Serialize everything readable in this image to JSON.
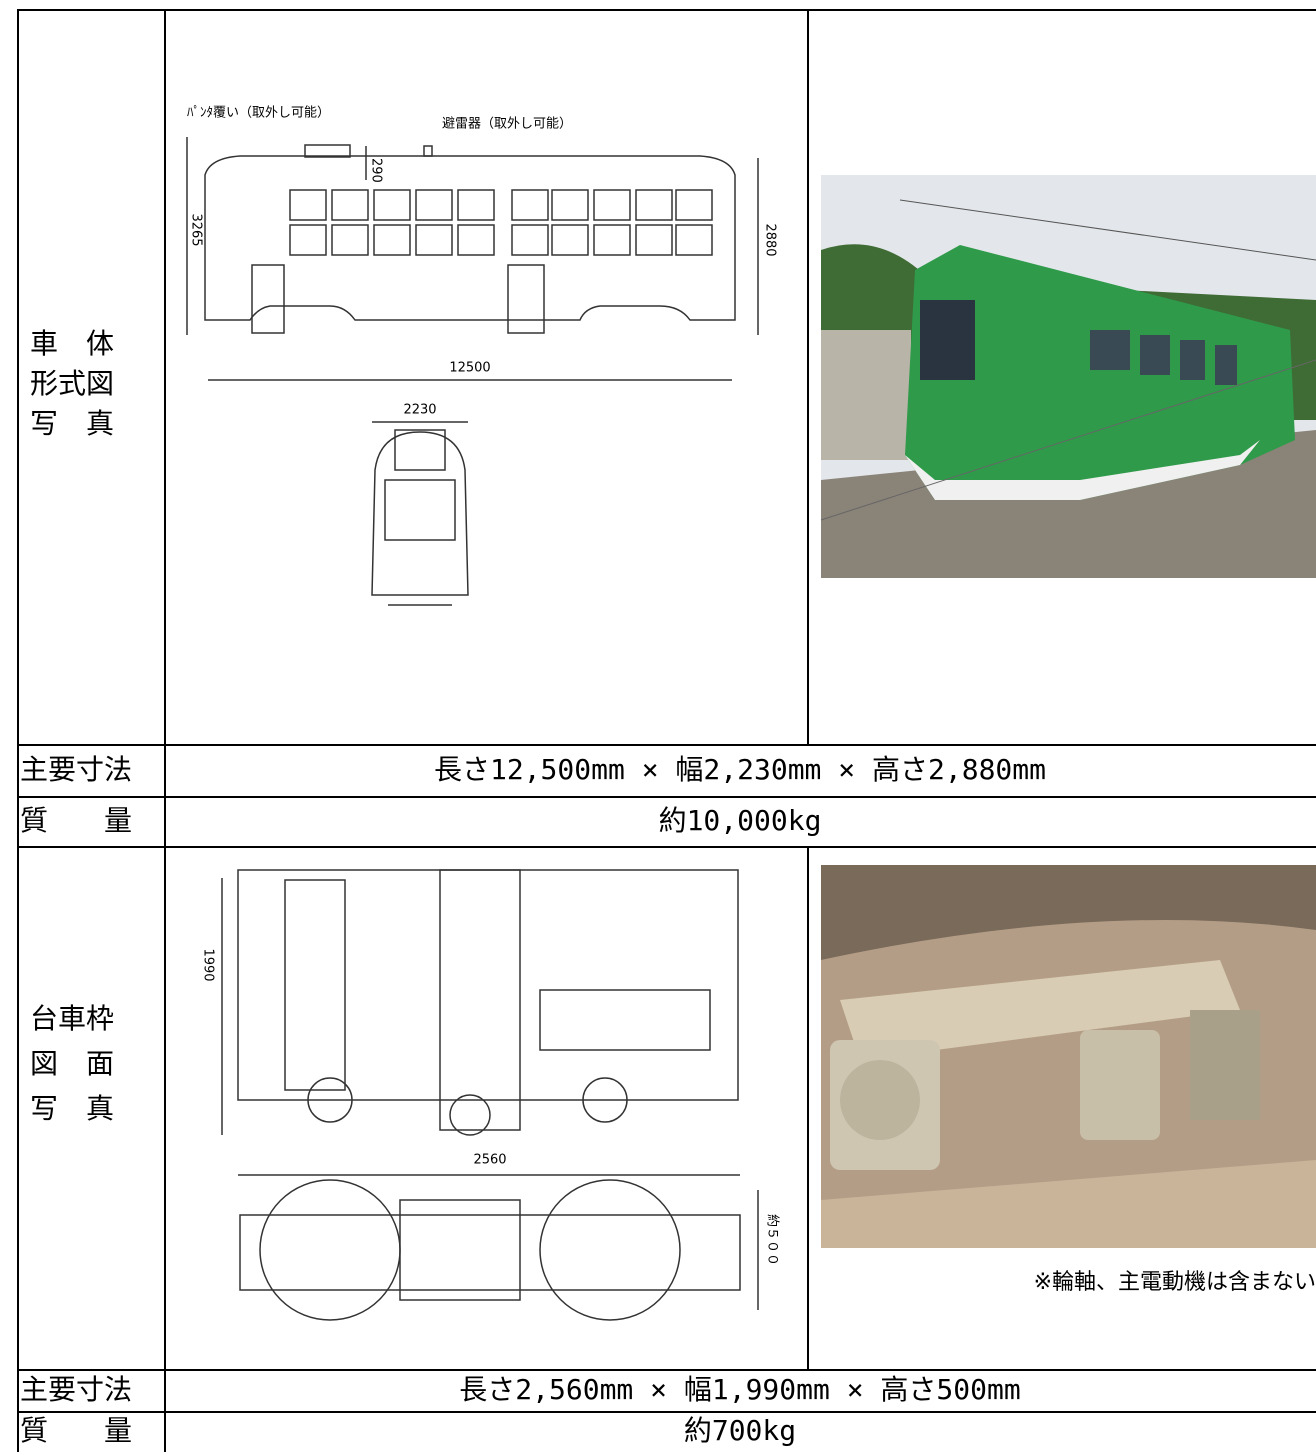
{
  "body": {
    "label": [
      "車　体",
      "形式図",
      "写　真"
    ],
    "drawing": {
      "pantograph_cover": "ﾊﾟﾝﾀ覆い（取外し可能）",
      "arrester": "避雷器（取外し可能）",
      "height_roof": "290",
      "height_total": "3265",
      "height_body": "2880",
      "length": "12500",
      "width": "2230"
    },
    "dimensions_label": "主要寸法",
    "dimensions": "長さ12,500mm × 幅2,230mm × 高さ2,880mm",
    "mass_label": "質　　量",
    "mass": "約10,000kg"
  },
  "bogie": {
    "label": [
      "台車枠",
      "図　面",
      "写　真"
    ],
    "drawing": {
      "width": "1990",
      "length": "2560",
      "height": "約５００"
    },
    "note": "※輪軸、主電動機は含まない",
    "dimensions_label": "主要寸法",
    "dimensions": "長さ2,560mm × 幅1,990mm × 高さ500mm",
    "mass_label": "質　　量",
    "mass": "約700kg"
  }
}
